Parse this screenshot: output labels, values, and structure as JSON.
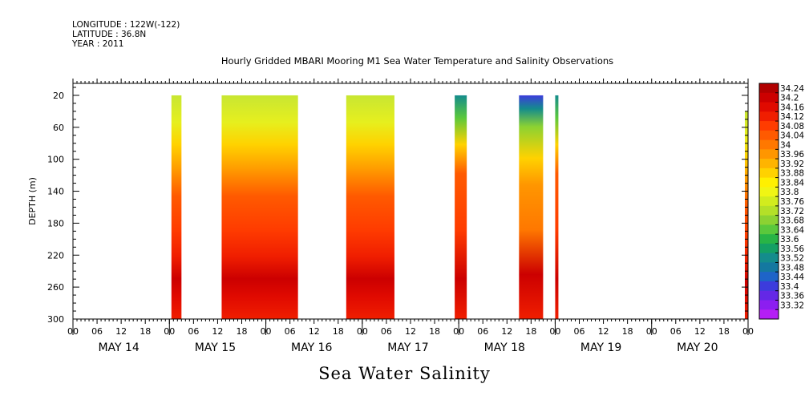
{
  "header": {
    "longitude": "LONGITUDE : 122W(-122)",
    "latitude": "LATITUDE : 36.8N",
    "year": "YEAR : 2011"
  },
  "chart_data": {
    "type": "heatmap",
    "title": "Hourly Gridded MBARI Mooring M1 Sea Water Temperature and Salinity Observations",
    "xlabel": "Sea Water Salinity",
    "ylabel": "DEPTH (m)",
    "y_ticks": [
      20,
      60,
      100,
      140,
      180,
      220,
      260,
      300
    ],
    "ylim": [
      300,
      5
    ],
    "x_hour_ticks": [
      "00",
      "06",
      "12",
      "18",
      "00",
      "06",
      "12",
      "18",
      "00",
      "06",
      "12",
      "18",
      "00",
      "06",
      "12",
      "18",
      "00",
      "06",
      "12",
      "18",
      "00",
      "06",
      "12",
      "18",
      "00",
      "06",
      "12",
      "18",
      "00"
    ],
    "x_day_labels": [
      "MAY 14",
      "MAY 15",
      "MAY 16",
      "MAY 17",
      "MAY 18",
      "MAY 19",
      "MAY 20"
    ],
    "colorbar_labels": [
      "34.24",
      "34.2",
      "34.16",
      "34.12",
      "34.08",
      "34.04",
      "34",
      "33.96",
      "33.92",
      "33.88",
      "33.84",
      "33.8",
      "33.76",
      "33.72",
      "33.68",
      "33.64",
      "33.6",
      "33.56",
      "33.52",
      "33.48",
      "33.44",
      "33.4",
      "33.36",
      "33.32"
    ],
    "colorbar_colors": [
      "#b10000",
      "#cc0000",
      "#e00a00",
      "#f01e00",
      "#ff3c00",
      "#ff5a00",
      "#ff7800",
      "#ff9600",
      "#ffb400",
      "#ffd200",
      "#fff000",
      "#f0f514",
      "#d2ec1e",
      "#b4e028",
      "#8cd232",
      "#5ac83c",
      "#28b446",
      "#14a064",
      "#148c8c",
      "#1478a0",
      "#1e64c8",
      "#3c3cdc",
      "#6428e6",
      "#8c1ef0",
      "#b41ef5"
    ],
    "data_gaps_note": "",
    "segments": [
      {
        "start_hour": 24.5,
        "end_hour": 27,
        "top_depth": 20,
        "surface": "33.82",
        "mid": "34.06",
        "deep": "34.22"
      },
      {
        "start_hour": 37,
        "end_hour": 56,
        "top_depth": 20,
        "surface": "33.80",
        "mid": "34.08",
        "deep": "34.16"
      },
      {
        "start_hour": 68,
        "end_hour": 80,
        "top_depth": 20,
        "surface": "33.78",
        "mid": "34.06",
        "deep": "34.14"
      },
      {
        "start_hour": 95,
        "end_hour": 98,
        "top_depth": 20,
        "surface": "33.60",
        "mid": "34.10",
        "deep": "34.22"
      },
      {
        "start_hour": 111,
        "end_hour": 117,
        "top_depth": 20,
        "surface": "33.42",
        "mid": "34.04",
        "deep": "34.22"
      },
      {
        "start_hour": 120,
        "end_hour": 120.8,
        "top_depth": 20,
        "surface": "33.60",
        "mid": "34.10",
        "deep": "34.16"
      },
      {
        "start_hour": 167.2,
        "end_hour": 168,
        "top_depth": 40,
        "surface": "33.86",
        "mid": "34.04",
        "deep": "34.20"
      }
    ]
  }
}
